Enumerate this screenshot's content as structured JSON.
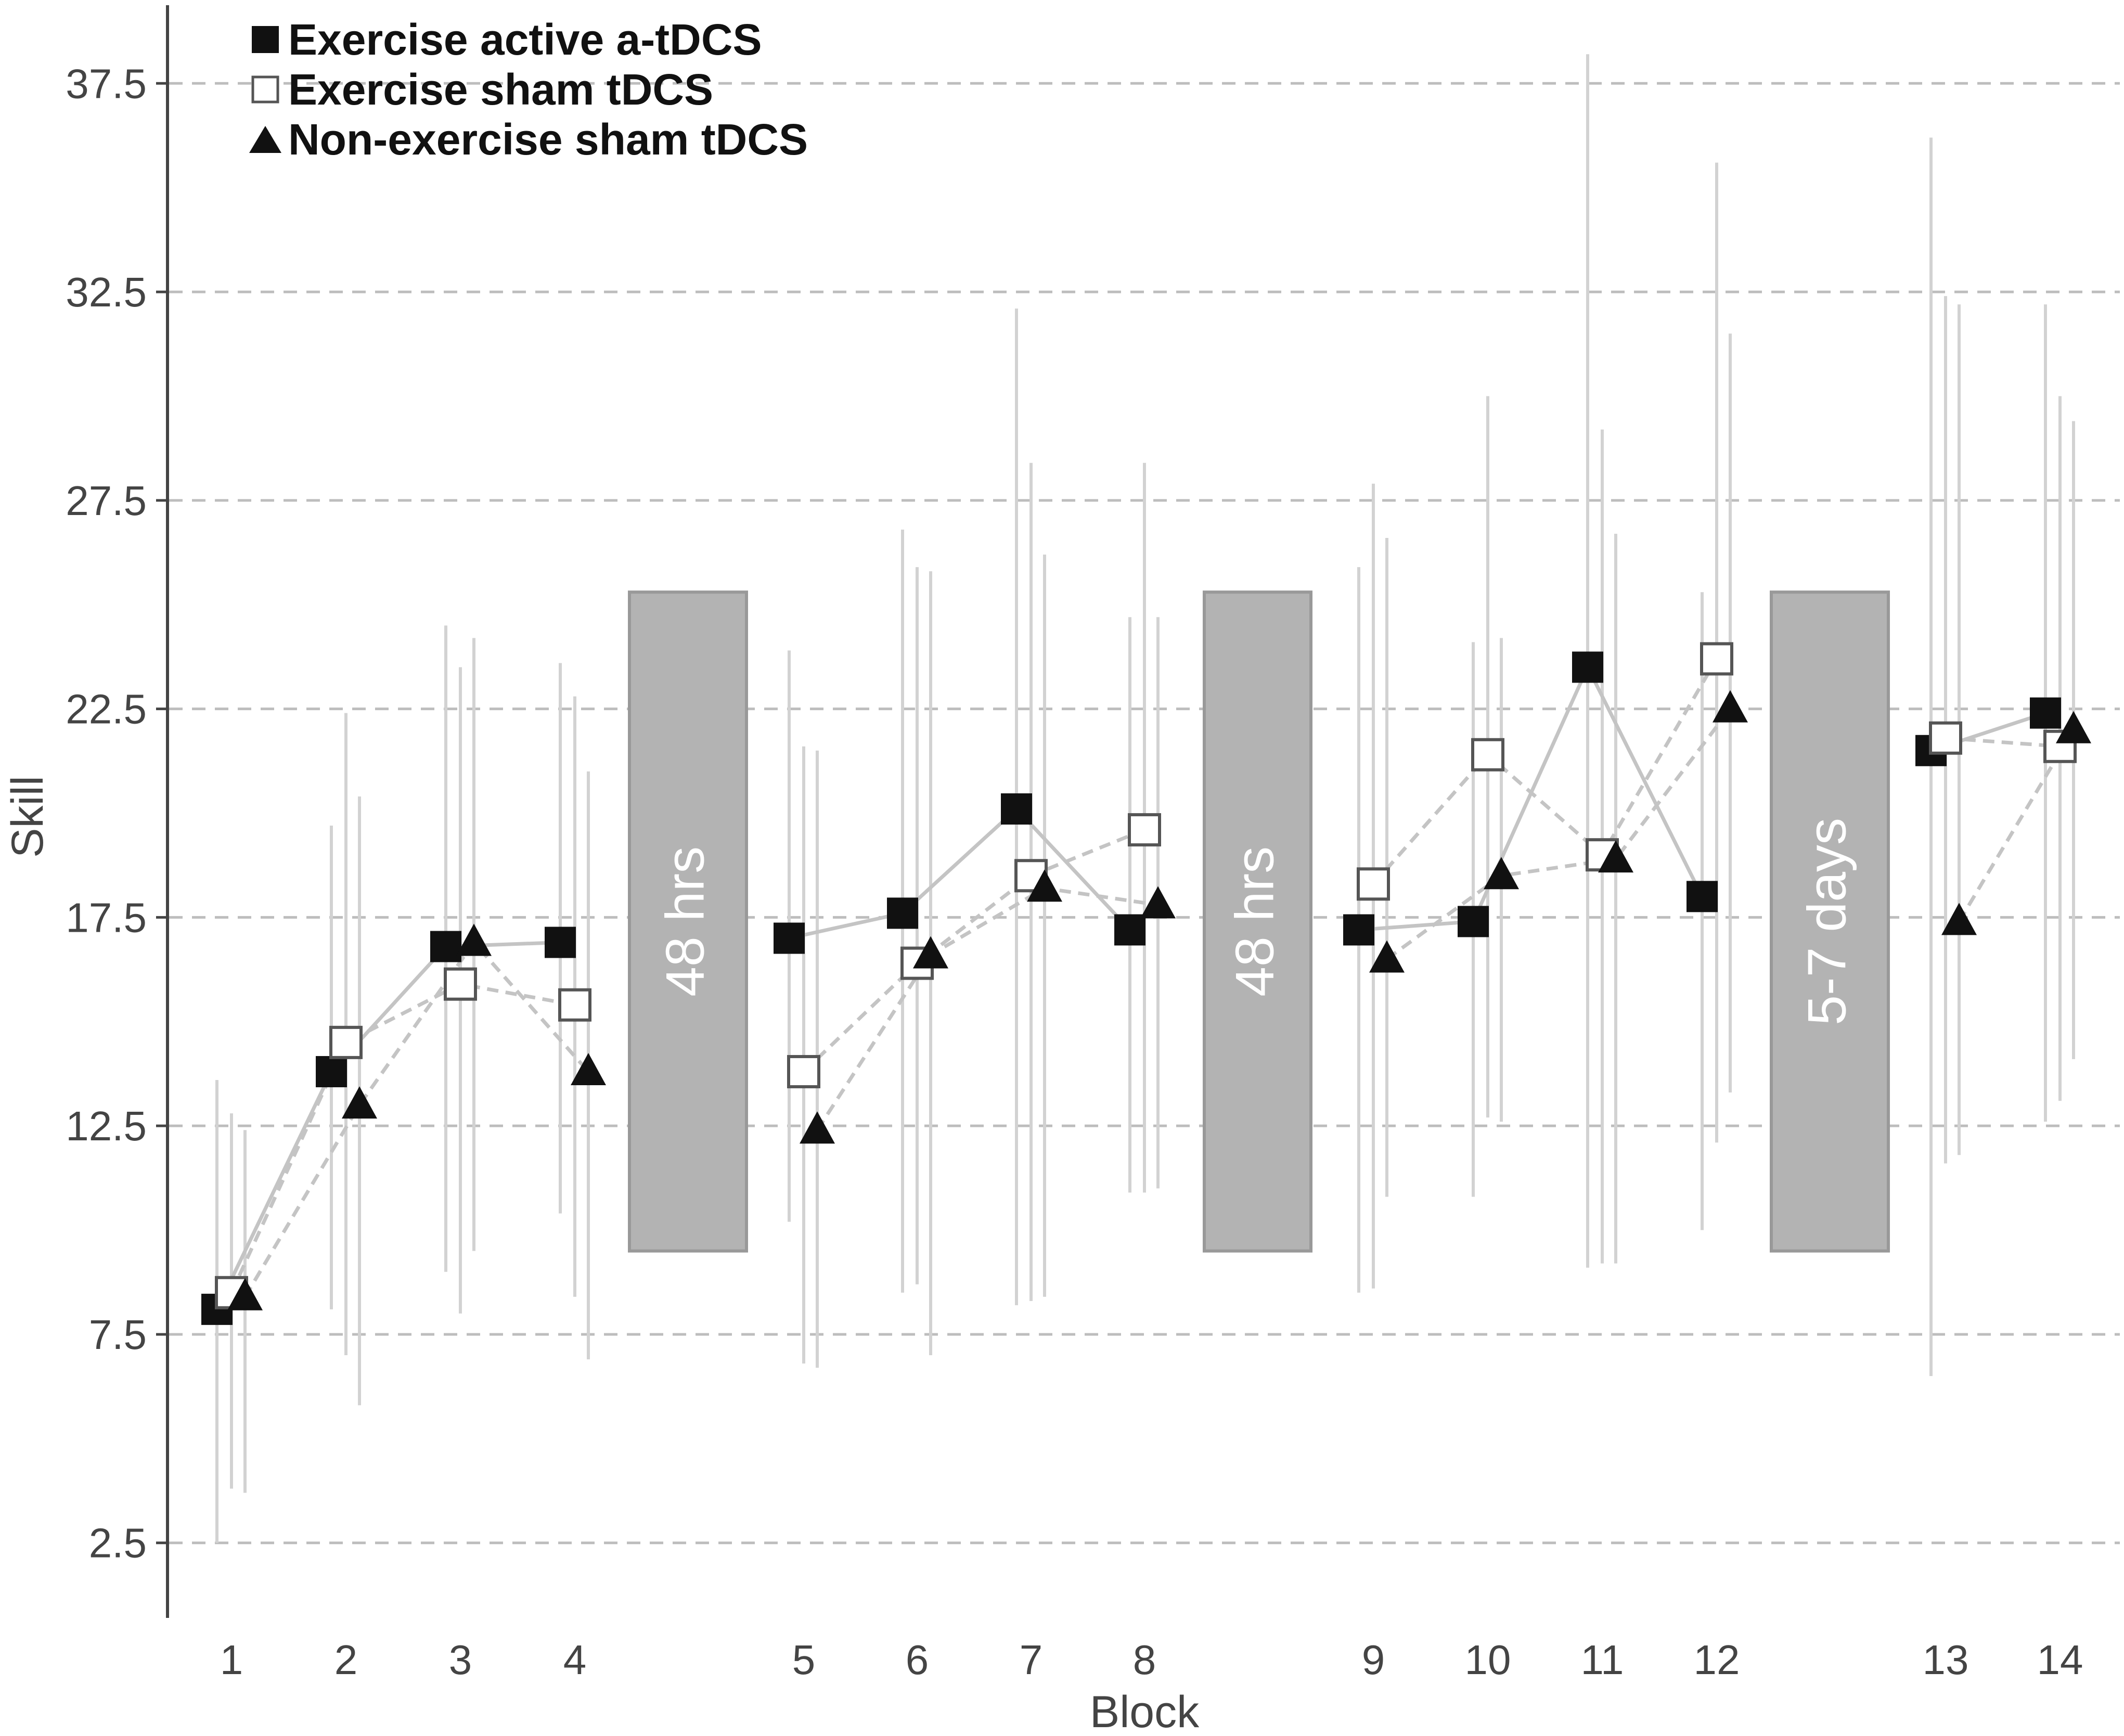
{
  "chart_data": {
    "type": "line",
    "xlabel": "Block",
    "ylabel": "Skill",
    "ylim": [
      0.7,
      39.5
    ],
    "yticks": [
      "2.5",
      "7.5",
      "12.5",
      "17.5",
      "22.5",
      "27.5",
      "32.5",
      "37.5"
    ],
    "grid": "horizontal dashed",
    "legend_placement": "top-left",
    "categories": [
      "1",
      "2",
      "3",
      "4",
      "5",
      "6",
      "7",
      "8",
      "9",
      "10",
      "11",
      "12",
      "13",
      "14"
    ],
    "series": [
      {
        "name": "Exercise active a-tDCS",
        "marker": "filled-square",
        "line": "solid",
        "color": "#111111",
        "values": [
          8.1,
          13.8,
          16.8,
          16.9,
          17.0,
          17.6,
          20.1,
          17.2,
          17.2,
          17.4,
          23.5,
          18.0,
          21.5,
          22.4
        ],
        "error_low": [
          2.5,
          8.1,
          9.0,
          10.4,
          10.2,
          8.5,
          8.2,
          10.9,
          8.5,
          10.8,
          9.1,
          10.0,
          6.5,
          12.6
        ],
        "error_high": [
          13.6,
          19.7,
          24.5,
          23.6,
          23.9,
          26.8,
          32.1,
          24.7,
          25.9,
          24.1,
          38.2,
          25.3,
          36.2,
          32.2
        ]
      },
      {
        "name": "Exercise sham tDCS",
        "marker": "open-square",
        "line": "dashed",
        "color": "#888888",
        "values": [
          8.5,
          14.5,
          15.9,
          15.4,
          13.8,
          16.4,
          18.5,
          19.6,
          18.3,
          21.4,
          19.0,
          23.7,
          21.8,
          21.6
        ],
        "error_low": [
          3.8,
          7.0,
          8.0,
          8.4,
          6.8,
          8.7,
          8.3,
          10.9,
          8.6,
          12.7,
          9.2,
          12.1,
          11.6,
          13.1
        ],
        "error_high": [
          12.8,
          22.4,
          23.5,
          22.8,
          21.6,
          25.9,
          28.4,
          28.4,
          27.9,
          30.0,
          29.2,
          35.6,
          32.4,
          30.0
        ]
      },
      {
        "name": "Non-exercise sham tDCS",
        "marker": "filled-triangle",
        "line": "dashed",
        "color": "#888888",
        "values": [
          8.4,
          13.0,
          16.9,
          13.8,
          12.4,
          16.6,
          18.2,
          17.8,
          16.5,
          18.5,
          18.9,
          22.5,
          17.4,
          22.0
        ],
        "error_low": [
          3.7,
          5.8,
          9.5,
          6.9,
          6.7,
          7.0,
          8.4,
          11.0,
          10.8,
          12.6,
          9.2,
          13.3,
          11.8,
          14.1
        ],
        "error_high": [
          12.4,
          20.4,
          24.2,
          21.0,
          21.5,
          25.8,
          26.2,
          24.7,
          26.6,
          24.2,
          26.7,
          31.5,
          32.2,
          29.4
        ]
      }
    ],
    "breaks": [
      {
        "label": "48 hrs"
      },
      {
        "label": "48 hrs"
      },
      {
        "label": "5-7 days"
      }
    ]
  }
}
